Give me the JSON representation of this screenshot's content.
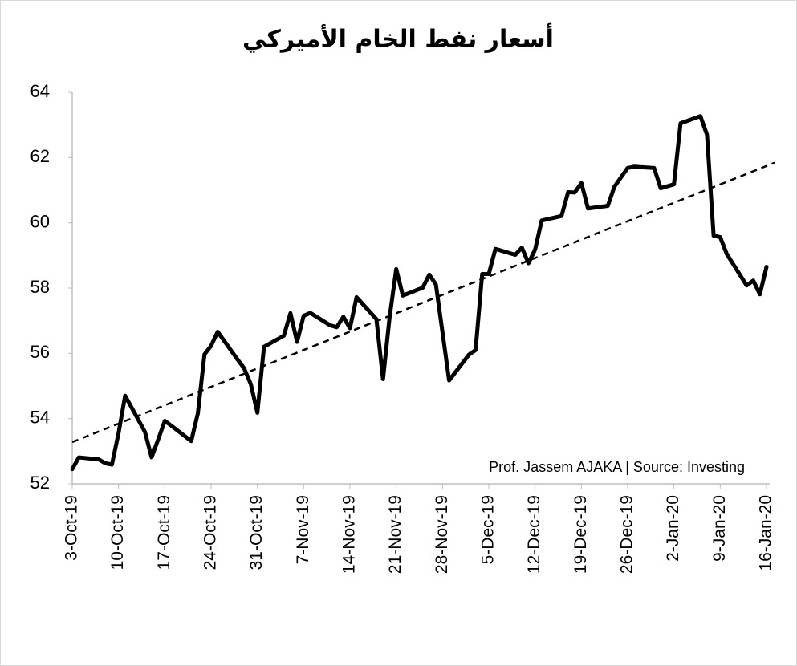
{
  "chart_data": {
    "type": "line",
    "title": "أسعار نفط الخام الأميركي",
    "annotation": "Prof. Jassem AJAKA | Source: Investing",
    "x": [
      "3-Oct-19",
      "4-Oct-19",
      "7-Oct-19",
      "8-Oct-19",
      "9-Oct-19",
      "10-Oct-19",
      "11-Oct-19",
      "14-Oct-19",
      "15-Oct-19",
      "16-Oct-19",
      "17-Oct-19",
      "18-Oct-19",
      "21-Oct-19",
      "22-Oct-19",
      "23-Oct-19",
      "24-Oct-19",
      "25-Oct-19",
      "28-Oct-19",
      "29-Oct-19",
      "30-Oct-19",
      "31-Oct-19",
      "1-Nov-19",
      "4-Nov-19",
      "5-Nov-19",
      "6-Nov-19",
      "7-Nov-19",
      "8-Nov-19",
      "11-Nov-19",
      "12-Nov-19",
      "13-Nov-19",
      "14-Nov-19",
      "15-Nov-19",
      "18-Nov-19",
      "19-Nov-19",
      "20-Nov-19",
      "21-Nov-19",
      "22-Nov-19",
      "25-Nov-19",
      "26-Nov-19",
      "27-Nov-19",
      "29-Nov-19",
      "2-Dec-19",
      "3-Dec-19",
      "4-Dec-19",
      "5-Dec-19",
      "6-Dec-19",
      "9-Dec-19",
      "10-Dec-19",
      "11-Dec-19",
      "12-Dec-19",
      "13-Dec-19",
      "16-Dec-19",
      "17-Dec-19",
      "18-Dec-19",
      "19-Dec-19",
      "20-Dec-19",
      "23-Dec-19",
      "24-Dec-19",
      "26-Dec-19",
      "27-Dec-19",
      "30-Dec-19",
      "31-Dec-19",
      "2-Jan-20",
      "3-Jan-20",
      "6-Jan-20",
      "7-Jan-20",
      "8-Jan-20",
      "9-Jan-20",
      "10-Jan-20",
      "13-Jan-20",
      "14-Jan-20",
      "15-Jan-20",
      "16-Jan-20"
    ],
    "series": [
      {
        "color": "#000000",
        "values": [
          52.45,
          52.81,
          52.75,
          52.63,
          52.59,
          53.55,
          54.7,
          53.59,
          52.81,
          53.36,
          53.93,
          53.78,
          53.31,
          54.16,
          55.97,
          56.23,
          56.66,
          55.81,
          55.54,
          55.06,
          54.18,
          56.2,
          56.54,
          57.23,
          56.35,
          57.15,
          57.24,
          56.86,
          56.8,
          57.12,
          56.77,
          57.72,
          57.05,
          55.21,
          57.11,
          58.58,
          57.77,
          58.01,
          58.41,
          58.11,
          55.17,
          55.96,
          56.1,
          58.43,
          58.43,
          59.2,
          59.02,
          59.24,
          58.76,
          59.18,
          60.07,
          60.21,
          60.94,
          60.93,
          61.22,
          60.44,
          60.52,
          61.11,
          61.68,
          61.72,
          61.68,
          61.06,
          61.18,
          63.05,
          63.27,
          62.7,
          59.61,
          59.56,
          59.04,
          58.08,
          58.23,
          57.81,
          58.65
        ]
      }
    ],
    "trendline": {
      "start": 53.28,
      "end": 61.84
    },
    "xlim": [
      "3-Oct-19",
      "16-Jan-20"
    ],
    "xticks": [
      "3-Oct-19",
      "10-Oct-19",
      "17-Oct-19",
      "24-Oct-19",
      "31-Oct-19",
      "7-Nov-19",
      "14-Nov-19",
      "21-Nov-19",
      "28-Nov-19",
      "5-Dec-19",
      "12-Dec-19",
      "19-Dec-19",
      "26-Dec-19",
      "2-Jan-20",
      "9-Jan-20",
      "16-Jan-20"
    ],
    "ylim": [
      52,
      64
    ],
    "yticks": [
      52,
      54,
      56,
      58,
      60,
      62,
      64
    ],
    "grid": false
  }
}
